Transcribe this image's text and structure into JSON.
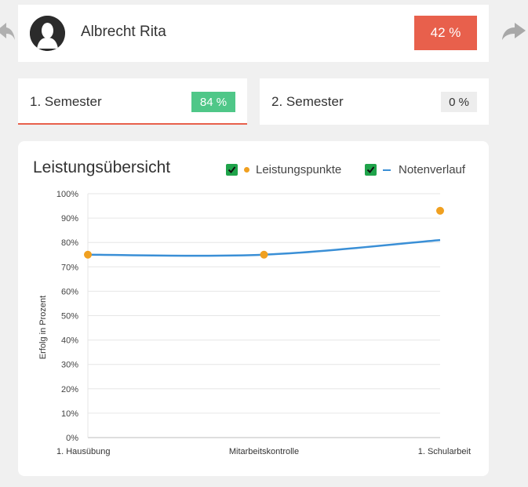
{
  "student": {
    "name": "Albrecht Rita",
    "total_percent": "42 %"
  },
  "navigation": {
    "prev_icon": "reply-arrow-icon",
    "next_icon": "forward-arrow-icon"
  },
  "semesters": [
    {
      "label": "1. Semester",
      "percent": "84 %",
      "selected": true
    },
    {
      "label": "2. Semester",
      "percent": "0 %",
      "selected": false
    }
  ],
  "colors": {
    "accent_red": "#e8604c",
    "success_green": "#4fc788",
    "points_orange": "#f0a020",
    "trend_blue": "#3a8fd6"
  },
  "chart_data": {
    "type": "line",
    "title": "Leistungsübersicht",
    "ylabel": "Erfolg in Prozent",
    "xlabel": "",
    "categories": [
      "1. Hausübung",
      "Mitarbeitskontrolle",
      "1. Schularbeit"
    ],
    "ylim": [
      0,
      100
    ],
    "yticks": [
      "0%",
      "10%",
      "20%",
      "30%",
      "40%",
      "50%",
      "60%",
      "70%",
      "80%",
      "90%",
      "100%"
    ],
    "grid": true,
    "legend_position": "top-right",
    "series": [
      {
        "name": "Leistungspunkte",
        "kind": "scatter",
        "color": "#f0a020",
        "values": [
          75,
          75,
          93
        ],
        "checked": true
      },
      {
        "name": "Notenverlauf",
        "kind": "line",
        "color": "#3a8fd6",
        "values": [
          75,
          75,
          81
        ],
        "checked": true
      }
    ]
  }
}
